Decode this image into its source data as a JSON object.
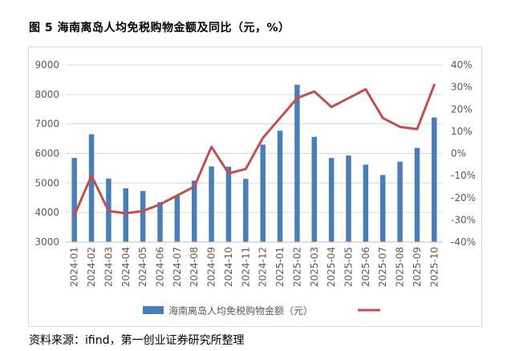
{
  "figure_title": "图 5  海南离岛人均免税购物金额及同比（元，%）",
  "source": "资料来源：ifind，第一创业证券研究所整理",
  "colors": {
    "bar": "#4a7ebb",
    "line": "#c0504d",
    "grid": "#d9d9d9",
    "tick": "#595959"
  },
  "chart_data": {
    "type": "bar",
    "title": "",
    "categories": [
      "2024-01",
      "2024-02",
      "2024-03",
      "2024-04",
      "2024-05",
      "2024-06",
      "2024-07",
      "2024-08",
      "2024-09",
      "2024-10",
      "2024-11",
      "2024-12",
      "2025-01",
      "2025-02",
      "2025-03",
      "2025-04",
      "2025-05",
      "2025-06",
      "2025-07",
      "2025-08",
      "2025-09",
      "2025-10"
    ],
    "series": [
      {
        "name": "海南离岛人均免税购物金额（元）",
        "type": "bar",
        "axis": "left",
        "values": [
          5850,
          6650,
          5150,
          4820,
          4730,
          4350,
          4580,
          5080,
          5560,
          5550,
          5140,
          6300,
          6770,
          8330,
          6560,
          5850,
          5930,
          5620,
          5270,
          5720,
          6190,
          7220
        ]
      },
      {
        "name": "",
        "type": "line",
        "axis": "right",
        "values": [
          -28,
          -10,
          -26,
          -27,
          -26,
          -23,
          -19,
          -15,
          3,
          -9,
          -7,
          7,
          16,
          25,
          28,
          21,
          25,
          29,
          16,
          12,
          11,
          31
        ]
      }
    ],
    "y_left": {
      "min": 3000,
      "max": 9000,
      "ticks": [
        "3000",
        "4000",
        "5000",
        "6000",
        "7000",
        "8000",
        "9000"
      ]
    },
    "y_right": {
      "min": -40,
      "max": 40,
      "ticks": [
        "-40%",
        "-30%",
        "-20%",
        "-10%",
        "0%",
        "10%",
        "20%",
        "30%",
        "40%"
      ]
    },
    "grid": true,
    "legend_position": "bottom"
  }
}
